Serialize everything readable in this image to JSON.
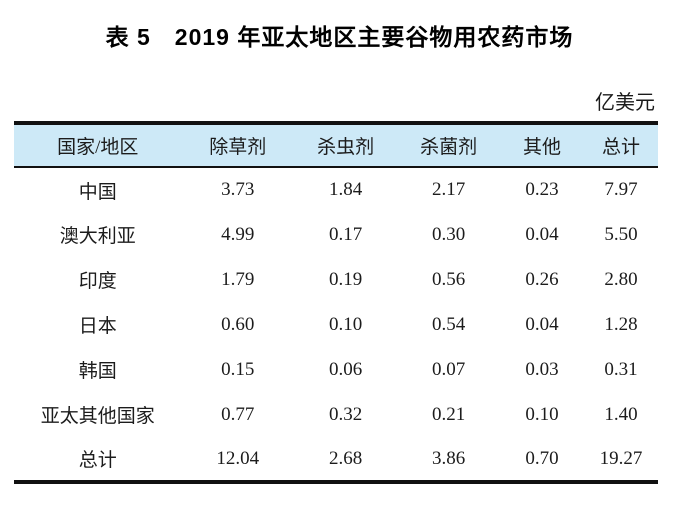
{
  "title": "表 5　2019 年亚太地区主要谷物用农药市场",
  "unit_label": "亿美元",
  "colors": {
    "header_bg": "#cde9f7",
    "border": "#111111"
  },
  "table": {
    "columns": [
      "国家/地区",
      "除草剂",
      "杀虫剂",
      "杀菌剂",
      "其他",
      "总计"
    ],
    "rows": [
      {
        "name": "中国",
        "values": [
          "3.73",
          "1.84",
          "2.17",
          "0.23",
          "7.97"
        ]
      },
      {
        "name": "澳大利亚",
        "values": [
          "4.99",
          "0.17",
          "0.30",
          "0.04",
          "5.50"
        ]
      },
      {
        "name": "印度",
        "values": [
          "1.79",
          "0.19",
          "0.56",
          "0.26",
          "2.80"
        ]
      },
      {
        "name": "日本",
        "values": [
          "0.60",
          "0.10",
          "0.54",
          "0.04",
          "1.28"
        ]
      },
      {
        "name": "韩国",
        "values": [
          "0.15",
          "0.06",
          "0.07",
          "0.03",
          "0.31"
        ]
      },
      {
        "name": "亚太其他国家",
        "values": [
          "0.77",
          "0.32",
          "0.21",
          "0.10",
          "1.40"
        ]
      },
      {
        "name": "总计",
        "values": [
          "12.04",
          "2.68",
          "3.86",
          "0.70",
          "19.27"
        ]
      }
    ]
  }
}
